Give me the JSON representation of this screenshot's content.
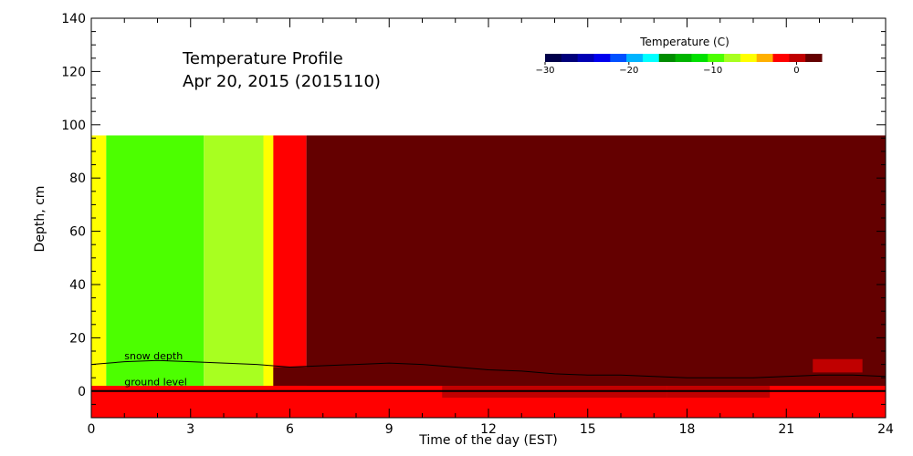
{
  "chart_data": {
    "type": "heatmap",
    "title_lines": [
      "Temperature Profile",
      "Apr 20, 2015 (2015110)"
    ],
    "xlabel": "Time of the day (EST)",
    "ylabel": "Depth, cm",
    "xlim": [
      0,
      24
    ],
    "ylim": [
      -10,
      140
    ],
    "x_ticks": [
      0,
      3,
      6,
      9,
      12,
      15,
      18,
      21,
      24
    ],
    "y_ticks": [
      0,
      20,
      40,
      60,
      80,
      100,
      120,
      140
    ],
    "colorbar": {
      "title": "Temperature (C)",
      "range": [
        -30,
        3
      ],
      "ticks": [
        -30,
        -20,
        -10,
        0
      ],
      "tick_labels": [
        "−30",
        "−20",
        "−10",
        "0"
      ],
      "placement": "top-right",
      "colors": [
        "#00004a",
        "#00007a",
        "#0000b4",
        "#0000ee",
        "#0050ff",
        "#00b4ff",
        "#00ffff",
        "#008c00",
        "#00b400",
        "#00e000",
        "#4cff00",
        "#a8ff20",
        "#ffff00",
        "#ffb000",
        "#ff0000",
        "#c00000",
        "#640000"
      ]
    },
    "regions": [
      {
        "name": "ground-band",
        "y": [
          -10,
          2
        ],
        "x": [
          0,
          24
        ],
        "color": "#ff0000"
      },
      {
        "name": "ground-patch-1",
        "y": [
          -2.5,
          2
        ],
        "x": [
          10.6,
          15.6
        ],
        "color": "#c00000"
      },
      {
        "name": "ground-patch-2",
        "y": [
          -2.5,
          2
        ],
        "x": [
          15.6,
          17.4
        ],
        "color": "#c00000"
      },
      {
        "name": "ground-patch-3",
        "y": [
          -2.5,
          2
        ],
        "x": [
          17.4,
          20.5
        ],
        "color": "#c00000"
      },
      {
        "name": "warm-early",
        "y": [
          2,
          96
        ],
        "x": [
          0,
          0.45
        ],
        "color": "#ffff00"
      },
      {
        "name": "mixed-early",
        "y": [
          2,
          96
        ],
        "x": [
          0.45,
          3.4
        ],
        "color": "#4cff00"
      },
      {
        "name": "cold-middle",
        "y": [
          2,
          96
        ],
        "x": [
          3.4,
          5.5
        ],
        "color": "#a8ff20"
      },
      {
        "name": "transition-1",
        "y": [
          2,
          96
        ],
        "x": [
          5.2,
          5.5
        ],
        "color": "#ffff00"
      },
      {
        "name": "transition-2",
        "y": [
          2,
          96
        ],
        "x": [
          5.5,
          6.5
        ],
        "color": "#ff0000"
      },
      {
        "name": "warm-rest",
        "y": [
          2,
          96
        ],
        "x": [
          6.5,
          24
        ],
        "color": "#640000"
      },
      {
        "name": "low-warm",
        "y": [
          2,
          9
        ],
        "x": [
          5.5,
          24
        ],
        "color": "#640000"
      },
      {
        "name": "late-patch",
        "y": [
          7,
          12
        ],
        "x": [
          21.8,
          23.3
        ],
        "color": "#c00000"
      }
    ],
    "lines": [
      {
        "name": "snow depth",
        "x": [
          0,
          1,
          2,
          3,
          4,
          5,
          6,
          7,
          8,
          9,
          10,
          11,
          12,
          13,
          14,
          15,
          16,
          17,
          18,
          19,
          20,
          21,
          22,
          23,
          24
        ],
        "y": [
          10,
          11,
          11.5,
          11,
          10.5,
          10,
          9,
          9.5,
          10,
          10.5,
          10,
          9,
          8,
          7.5,
          6.5,
          6,
          6,
          5.5,
          5,
          5,
          5,
          5.5,
          6,
          6,
          5.5
        ]
      },
      {
        "name": "ground level",
        "x": [
          0,
          24
        ],
        "y": [
          0,
          0
        ]
      }
    ],
    "annotations": [
      {
        "text": "snow depth",
        "x": 1.0,
        "y": 12
      },
      {
        "text": "ground level",
        "x": 1.0,
        "y": 2.2
      }
    ]
  }
}
